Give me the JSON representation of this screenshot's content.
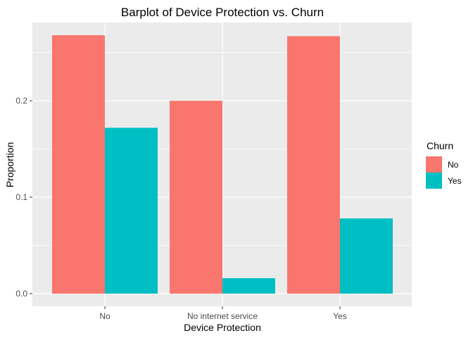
{
  "chart_data": {
    "type": "bar",
    "title": "Barplot of Device Protection vs. Churn",
    "xlabel": "Device Protection",
    "ylabel": "Proportion",
    "categories": [
      "No",
      "No internet service",
      "Yes"
    ],
    "series": [
      {
        "name": "No",
        "values": [
          0.268,
          0.2,
          0.267
        ],
        "color": "#F8766D"
      },
      {
        "name": "Yes",
        "values": [
          0.172,
          0.016,
          0.078
        ],
        "color": "#00BFC4"
      }
    ],
    "ylim": [
      0,
      0.281
    ],
    "y_ticks": [
      0.0,
      0.1,
      0.2
    ],
    "y_tick_labels": [
      "0.0",
      "0.1",
      "0.2"
    ],
    "grid": true,
    "panel_background": "#EBEBEB",
    "grid_color": "#FFFFFF",
    "legend": {
      "title": "Churn",
      "placement": "right",
      "items": [
        "No",
        "Yes"
      ]
    }
  }
}
